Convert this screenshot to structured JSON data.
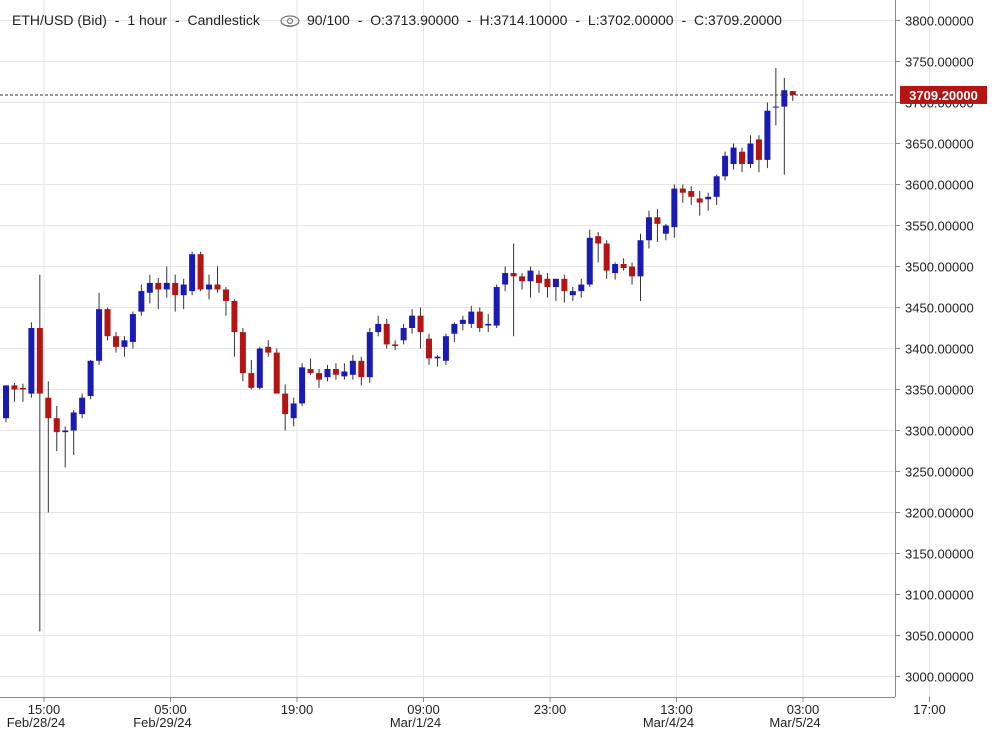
{
  "header": {
    "symbol": "ETH/USD (Bid)",
    "sep1": "-",
    "interval": "1 hour",
    "sep2": "-",
    "chart_type_label": "Candlestick",
    "visibility_icon": "eye-icon",
    "zoom": "90/100",
    "sep3": "-",
    "open": "O:3713.90000",
    "sep4": "-",
    "high": "H:3714.10000",
    "sep5": "-",
    "low": "L:3702.00000",
    "sep6": "-",
    "close": "C:3709.20000"
  },
  "colors": {
    "up": "#1a1ab4",
    "down": "#b41414",
    "wick": "#333333",
    "grid": "#e6e6e6",
    "price_tag": "#b41414",
    "axis_line": "#888888"
  },
  "chart_data": {
    "type": "candlestick",
    "title": "ETH/USD (Bid) - 1 hour - Candlestick",
    "xlabel": "",
    "ylabel": "",
    "ylim": [
      2975,
      3825
    ],
    "y_ticks": [
      "3000.00000",
      "3050.00000",
      "3100.00000",
      "3150.00000",
      "3200.00000",
      "3250.00000",
      "3300.00000",
      "3350.00000",
      "3400.00000",
      "3450.00000",
      "3500.00000",
      "3550.00000",
      "3600.00000",
      "3650.00000",
      "3700.00000",
      "3750.00000",
      "3800.00000"
    ],
    "x_ticks": [
      {
        "time": "15:00",
        "date": "Feb/28/24"
      },
      {
        "time": "05:00",
        "date": "Feb/29/24"
      },
      {
        "time": "19:00",
        "date": ""
      },
      {
        "time": "09:00",
        "date": "Mar/1/24"
      },
      {
        "time": "23:00",
        "date": ""
      },
      {
        "time": "13:00",
        "date": "Mar/4/24"
      },
      {
        "time": "03:00",
        "date": "Mar/5/24"
      },
      {
        "time": "17:00",
        "date": ""
      }
    ],
    "current_price": "3709.20000",
    "grid": true,
    "candles": [
      {
        "o": 3315,
        "h": 3355,
        "l": 3310,
        "c": 3355
      },
      {
        "o": 3355,
        "h": 3358,
        "l": 3335,
        "c": 3350
      },
      {
        "o": 3352,
        "h": 3357,
        "l": 3335,
        "c": 3350
      },
      {
        "o": 3345,
        "h": 3432,
        "l": 3340,
        "c": 3425
      },
      {
        "o": 3425,
        "h": 3490,
        "l": 3055,
        "c": 3345
      },
      {
        "o": 3340,
        "h": 3360,
        "l": 3200,
        "c": 3315
      },
      {
        "o": 3315,
        "h": 3330,
        "l": 3275,
        "c": 3298
      },
      {
        "o": 3298,
        "h": 3305,
        "l": 3255,
        "c": 3300
      },
      {
        "o": 3300,
        "h": 3325,
        "l": 3270,
        "c": 3322
      },
      {
        "o": 3320,
        "h": 3345,
        "l": 3315,
        "c": 3340
      },
      {
        "o": 3342,
        "h": 3386,
        "l": 3338,
        "c": 3385
      },
      {
        "o": 3385,
        "h": 3468,
        "l": 3380,
        "c": 3448
      },
      {
        "o": 3448,
        "h": 3450,
        "l": 3410,
        "c": 3415
      },
      {
        "o": 3415,
        "h": 3420,
        "l": 3395,
        "c": 3402
      },
      {
        "o": 3402,
        "h": 3415,
        "l": 3390,
        "c": 3410
      },
      {
        "o": 3408,
        "h": 3445,
        "l": 3400,
        "c": 3442
      },
      {
        "o": 3445,
        "h": 3478,
        "l": 3440,
        "c": 3470
      },
      {
        "o": 3468,
        "h": 3490,
        "l": 3455,
        "c": 3480
      },
      {
        "o": 3480,
        "h": 3486,
        "l": 3448,
        "c": 3472
      },
      {
        "o": 3472,
        "h": 3500,
        "l": 3462,
        "c": 3480
      },
      {
        "o": 3480,
        "h": 3490,
        "l": 3445,
        "c": 3465
      },
      {
        "o": 3465,
        "h": 3485,
        "l": 3448,
        "c": 3478
      },
      {
        "o": 3470,
        "h": 3518,
        "l": 3465,
        "c": 3515
      },
      {
        "o": 3515,
        "h": 3518,
        "l": 3470,
        "c": 3472
      },
      {
        "o": 3472,
        "h": 3490,
        "l": 3460,
        "c": 3478
      },
      {
        "o": 3478,
        "h": 3500,
        "l": 3468,
        "c": 3472
      },
      {
        "o": 3472,
        "h": 3475,
        "l": 3440,
        "c": 3458
      },
      {
        "o": 3458,
        "h": 3460,
        "l": 3390,
        "c": 3420
      },
      {
        "o": 3420,
        "h": 3425,
        "l": 3360,
        "c": 3370
      },
      {
        "o": 3370,
        "h": 3386,
        "l": 3350,
        "c": 3352
      },
      {
        "o": 3352,
        "h": 3402,
        "l": 3350,
        "c": 3400
      },
      {
        "o": 3402,
        "h": 3410,
        "l": 3390,
        "c": 3395
      },
      {
        "o": 3395,
        "h": 3400,
        "l": 3350,
        "c": 3345
      },
      {
        "o": 3345,
        "h": 3356,
        "l": 3300,
        "c": 3320
      },
      {
        "o": 3315,
        "h": 3340,
        "l": 3305,
        "c": 3333
      },
      {
        "o": 3333,
        "h": 3382,
        "l": 3330,
        "c": 3377
      },
      {
        "o": 3375,
        "h": 3388,
        "l": 3368,
        "c": 3370
      },
      {
        "o": 3370,
        "h": 3375,
        "l": 3352,
        "c": 3362
      },
      {
        "o": 3365,
        "h": 3380,
        "l": 3360,
        "c": 3375
      },
      {
        "o": 3375,
        "h": 3382,
        "l": 3362,
        "c": 3368
      },
      {
        "o": 3366,
        "h": 3382,
        "l": 3362,
        "c": 3372
      },
      {
        "o": 3368,
        "h": 3392,
        "l": 3362,
        "c": 3385
      },
      {
        "o": 3385,
        "h": 3390,
        "l": 3355,
        "c": 3365
      },
      {
        "o": 3365,
        "h": 3425,
        "l": 3358,
        "c": 3420
      },
      {
        "o": 3420,
        "h": 3440,
        "l": 3415,
        "c": 3430
      },
      {
        "o": 3430,
        "h": 3436,
        "l": 3400,
        "c": 3405
      },
      {
        "o": 3405,
        "h": 3410,
        "l": 3398,
        "c": 3403
      },
      {
        "o": 3410,
        "h": 3430,
        "l": 3405,
        "c": 3425
      },
      {
        "o": 3425,
        "h": 3448,
        "l": 3418,
        "c": 3440
      },
      {
        "o": 3440,
        "h": 3450,
        "l": 3400,
        "c": 3420
      },
      {
        "o": 3412,
        "h": 3418,
        "l": 3380,
        "c": 3388
      },
      {
        "o": 3388,
        "h": 3392,
        "l": 3378,
        "c": 3390
      },
      {
        "o": 3385,
        "h": 3418,
        "l": 3380,
        "c": 3415
      },
      {
        "o": 3418,
        "h": 3432,
        "l": 3408,
        "c": 3430
      },
      {
        "o": 3430,
        "h": 3440,
        "l": 3422,
        "c": 3435
      },
      {
        "o": 3430,
        "h": 3452,
        "l": 3425,
        "c": 3445
      },
      {
        "o": 3445,
        "h": 3450,
        "l": 3420,
        "c": 3425
      },
      {
        "o": 3428,
        "h": 3442,
        "l": 3420,
        "c": 3430
      },
      {
        "o": 3428,
        "h": 3478,
        "l": 3425,
        "c": 3475
      },
      {
        "o": 3478,
        "h": 3500,
        "l": 3470,
        "c": 3492
      },
      {
        "o": 3492,
        "h": 3528,
        "l": 3415,
        "c": 3488
      },
      {
        "o": 3488,
        "h": 3492,
        "l": 3472,
        "c": 3482
      },
      {
        "o": 3482,
        "h": 3500,
        "l": 3462,
        "c": 3495
      },
      {
        "o": 3490,
        "h": 3495,
        "l": 3468,
        "c": 3480
      },
      {
        "o": 3485,
        "h": 3492,
        "l": 3462,
        "c": 3475
      },
      {
        "o": 3475,
        "h": 3480,
        "l": 3458,
        "c": 3485
      },
      {
        "o": 3485,
        "h": 3490,
        "l": 3456,
        "c": 3470
      },
      {
        "o": 3465,
        "h": 3475,
        "l": 3458,
        "c": 3470
      },
      {
        "o": 3470,
        "h": 3485,
        "l": 3462,
        "c": 3478
      },
      {
        "o": 3478,
        "h": 3545,
        "l": 3475,
        "c": 3535
      },
      {
        "o": 3537,
        "h": 3542,
        "l": 3505,
        "c": 3528
      },
      {
        "o": 3528,
        "h": 3532,
        "l": 3485,
        "c": 3495
      },
      {
        "o": 3492,
        "h": 3505,
        "l": 3484,
        "c": 3503
      },
      {
        "o": 3503,
        "h": 3510,
        "l": 3495,
        "c": 3498
      },
      {
        "o": 3500,
        "h": 3505,
        "l": 3478,
        "c": 3488
      },
      {
        "o": 3488,
        "h": 3540,
        "l": 3458,
        "c": 3532
      },
      {
        "o": 3532,
        "h": 3568,
        "l": 3522,
        "c": 3560
      },
      {
        "o": 3560,
        "h": 3570,
        "l": 3530,
        "c": 3552
      },
      {
        "o": 3540,
        "h": 3552,
        "l": 3532,
        "c": 3550
      },
      {
        "o": 3548,
        "h": 3600,
        "l": 3535,
        "c": 3595
      },
      {
        "o": 3595,
        "h": 3600,
        "l": 3578,
        "c": 3590
      },
      {
        "o": 3592,
        "h": 3598,
        "l": 3575,
        "c": 3585
      },
      {
        "o": 3583,
        "h": 3592,
        "l": 3562,
        "c": 3578
      },
      {
        "o": 3582,
        "h": 3590,
        "l": 3568,
        "c": 3585
      },
      {
        "o": 3585,
        "h": 3612,
        "l": 3575,
        "c": 3610
      },
      {
        "o": 3610,
        "h": 3640,
        "l": 3605,
        "c": 3635
      },
      {
        "o": 3625,
        "h": 3650,
        "l": 3618,
        "c": 3645
      },
      {
        "o": 3640,
        "h": 3645,
        "l": 3615,
        "c": 3625
      },
      {
        "o": 3625,
        "h": 3660,
        "l": 3620,
        "c": 3650
      },
      {
        "o": 3655,
        "h": 3660,
        "l": 3615,
        "c": 3630
      },
      {
        "o": 3630,
        "h": 3700,
        "l": 3620,
        "c": 3690
      },
      {
        "o": 3695,
        "h": 3742,
        "l": 3672,
        "c": 3695
      },
      {
        "o": 3695,
        "h": 3730,
        "l": 3612,
        "c": 3715
      },
      {
        "o": 3713.9,
        "h": 3714.1,
        "l": 3702,
        "c": 3709.2
      }
    ]
  }
}
